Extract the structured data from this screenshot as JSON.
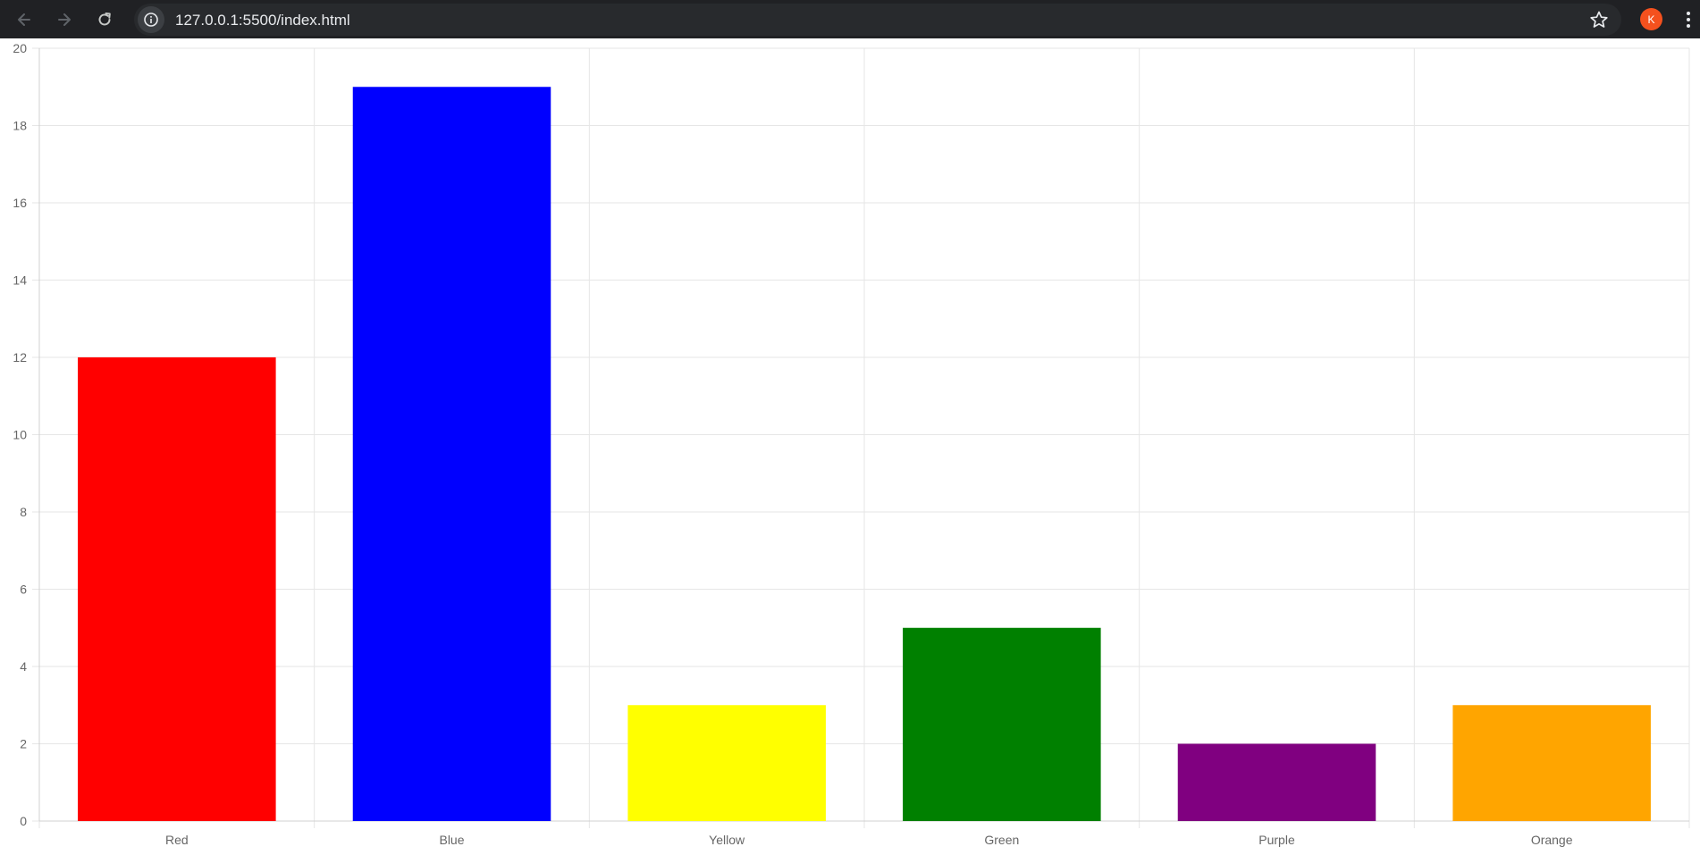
{
  "browser": {
    "url": "127.0.0.1:5500/index.html",
    "profile_initial": "K",
    "icons": {
      "back": "arrow-left-icon",
      "forward": "arrow-right-icon",
      "reload": "reload-icon",
      "site_info": "info-icon",
      "bookmark": "star-icon",
      "menu": "more-vert-icon"
    },
    "colors": {
      "toolbar": "#202124",
      "omnibox": "#282a2d",
      "avatar": "#f4511e"
    }
  },
  "chart_data": {
    "type": "bar",
    "categories": [
      "Red",
      "Blue",
      "Yellow",
      "Green",
      "Purple",
      "Orange"
    ],
    "values": [
      12,
      19,
      3,
      5,
      2,
      3
    ],
    "colors": [
      "#ff0000",
      "#0000ff",
      "#ffff00",
      "#008000",
      "#800080",
      "#ffa500"
    ],
    "ylim": [
      0,
      20
    ],
    "yticks": [
      "0",
      "2",
      "4",
      "6",
      "8",
      "10",
      "12",
      "14",
      "16",
      "18",
      "20"
    ],
    "grid": true,
    "legend": "none"
  }
}
